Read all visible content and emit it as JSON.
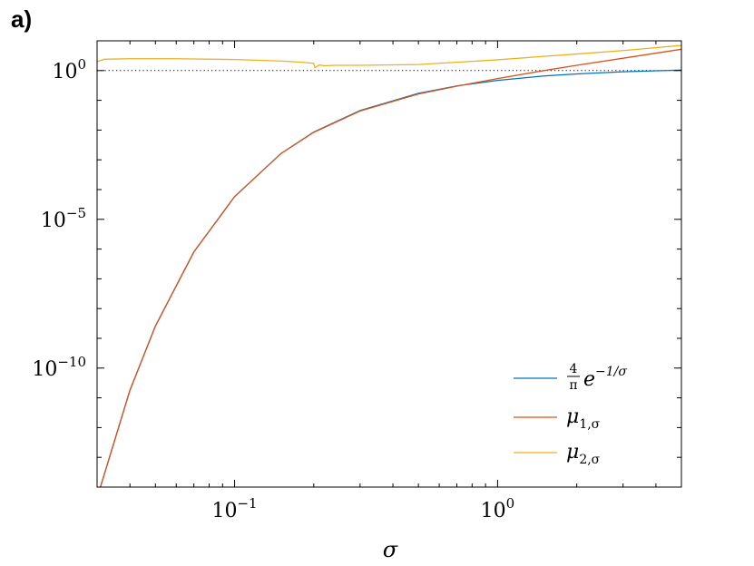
{
  "panel_label": "a)",
  "chart_data": {
    "type": "line",
    "xscale": "log",
    "yscale": "log",
    "xlim": [
      0.03,
      5.0
    ],
    "ylim": [
      1e-14,
      10
    ],
    "xlabel": "σ",
    "ylabel": "",
    "grid": false,
    "legend_position": "bottom-right",
    "x_ticks": [
      {
        "value": 0.1,
        "base": "10",
        "exp": "−1"
      },
      {
        "value": 1,
        "base": "10",
        "exp": "0"
      }
    ],
    "y_ticks": [
      {
        "value": 1,
        "base": "10",
        "exp": "0"
      },
      {
        "value": 1e-05,
        "base": "10",
        "exp": "−5"
      },
      {
        "value": 1e-10,
        "base": "10",
        "exp": "−10"
      }
    ],
    "reference_line": {
      "y": 1,
      "style": "dotted",
      "color": "#000000"
    },
    "series": [
      {
        "key": "formula",
        "legend": {
          "numerator": "4",
          "denominator": "π",
          "base": "e",
          "superscript": "−1/σ"
        },
        "color": "#0072BD",
        "x": [
          0.03,
          0.04,
          0.05,
          0.07,
          0.1,
          0.15,
          0.2,
          0.3,
          0.5,
          0.7,
          1.0,
          1.5,
          2.0,
          3.0,
          5.0
        ],
        "y": [
          4.3e-15,
          1.8e-11,
          2.6e-09,
          8e-07,
          5.8e-05,
          0.00162,
          0.0086,
          0.0454,
          0.172,
          0.305,
          0.468,
          0.657,
          0.772,
          0.912,
          1.04
        ]
      },
      {
        "key": "mu1",
        "legend": {
          "base": "μ",
          "subscript": "1,σ"
        },
        "color": "#D95319",
        "x": [
          0.03,
          0.04,
          0.05,
          0.07,
          0.1,
          0.15,
          0.2,
          0.3,
          0.5,
          0.7,
          1.0,
          1.5,
          2.0,
          3.0,
          5.0
        ],
        "y": [
          4.3e-15,
          1.8e-11,
          2.6e-09,
          8e-07,
          5.8e-05,
          0.00162,
          0.0084,
          0.0436,
          0.163,
          0.3,
          0.54,
          1.0,
          1.5,
          2.6,
          5.2
        ]
      },
      {
        "key": "mu2",
        "legend": {
          "base": "μ",
          "subscript": "2,σ"
        },
        "color": "#EDB120",
        "x": [
          0.03,
          0.032,
          0.04,
          0.06,
          0.1,
          0.15,
          0.18,
          0.2,
          0.202,
          0.21,
          0.22,
          0.24,
          0.3,
          0.5,
          0.7,
          1.0,
          1.5,
          2.0,
          3.0,
          5.0
        ],
        "y": [
          2.0,
          2.4,
          2.5,
          2.5,
          2.35,
          2.1,
          1.9,
          1.75,
          1.25,
          1.55,
          1.45,
          1.5,
          1.5,
          1.6,
          1.9,
          2.3,
          3.0,
          3.6,
          4.7,
          7.0
        ]
      }
    ]
  }
}
